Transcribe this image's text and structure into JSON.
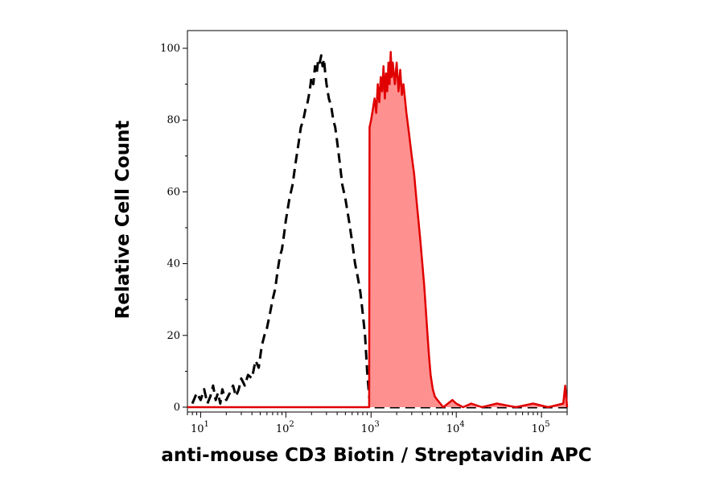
{
  "chart_data": {
    "type": "area",
    "title": "",
    "xlabel": "anti-mouse CD3 Biotin / Streptavidin APC",
    "ylabel": "Relative Cell Count",
    "x_scale": "log",
    "xlim": [
      7,
      200000
    ],
    "ylim": [
      0,
      105
    ],
    "grid": false,
    "x_ticks": [
      {
        "value": 10,
        "base": "10",
        "exp": "1"
      },
      {
        "value": 100,
        "base": "10",
        "exp": "2"
      },
      {
        "value": 1000,
        "base": "10",
        "exp": "3"
      },
      {
        "value": 10000,
        "base": "10",
        "exp": "4"
      },
      {
        "value": 100000,
        "base": "10",
        "exp": "5"
      }
    ],
    "y_ticks": [
      {
        "value": 0,
        "label": "0"
      },
      {
        "value": 20,
        "label": "20"
      },
      {
        "value": 40,
        "label": "40"
      },
      {
        "value": 60,
        "label": "60"
      },
      {
        "value": 80,
        "label": "80"
      },
      {
        "value": 100,
        "label": "100"
      }
    ],
    "series": [
      {
        "style": "dashed",
        "fill": "none",
        "color": "#000000",
        "points": [
          [
            8,
            1
          ],
          [
            9,
            4
          ],
          [
            10,
            2
          ],
          [
            11,
            5
          ],
          [
            12,
            1
          ],
          [
            13,
            3
          ],
          [
            14,
            6
          ],
          [
            15,
            2
          ],
          [
            16,
            4
          ],
          [
            17,
            1
          ],
          [
            18,
            5
          ],
          [
            19,
            3
          ],
          [
            20,
            2
          ],
          [
            22,
            4
          ],
          [
            24,
            6
          ],
          [
            26,
            3
          ],
          [
            28,
            5
          ],
          [
            30,
            8
          ],
          [
            33,
            6
          ],
          [
            36,
            9
          ],
          [
            40,
            8
          ],
          [
            44,
            13
          ],
          [
            48,
            11
          ],
          [
            52,
            17
          ],
          [
            56,
            20
          ],
          [
            60,
            22
          ],
          [
            65,
            26
          ],
          [
            70,
            30
          ],
          [
            75,
            33
          ],
          [
            80,
            38
          ],
          [
            85,
            42
          ],
          [
            90,
            44
          ],
          [
            95,
            48
          ],
          [
            100,
            52
          ],
          [
            110,
            58
          ],
          [
            120,
            62
          ],
          [
            130,
            68
          ],
          [
            140,
            73
          ],
          [
            150,
            78
          ],
          [
            160,
            80
          ],
          [
            170,
            83
          ],
          [
            180,
            85
          ],
          [
            190,
            88
          ],
          [
            200,
            92
          ],
          [
            210,
            90
          ],
          [
            220,
            95
          ],
          [
            230,
            93
          ],
          [
            240,
            97
          ],
          [
            250,
            96
          ],
          [
            260,
            98
          ],
          [
            270,
            95
          ],
          [
            280,
            97
          ],
          [
            290,
            93
          ],
          [
            300,
            90
          ],
          [
            320,
            86
          ],
          [
            340,
            84
          ],
          [
            360,
            80
          ],
          [
            380,
            78
          ],
          [
            400,
            74
          ],
          [
            430,
            68
          ],
          [
            460,
            62
          ],
          [
            500,
            58
          ],
          [
            550,
            52
          ],
          [
            600,
            46
          ],
          [
            650,
            40
          ],
          [
            700,
            36
          ],
          [
            750,
            32
          ],
          [
            800,
            26
          ],
          [
            850,
            20
          ],
          [
            900,
            10
          ],
          [
            950,
            3
          ],
          [
            1000,
            0
          ],
          [
            2000,
            0
          ],
          [
            10000,
            0
          ],
          [
            200000,
            0
          ]
        ]
      },
      {
        "style": "solid",
        "fill": "#ff9090",
        "color": "#e00000",
        "points": [
          [
            7,
            0
          ],
          [
            950,
            0
          ],
          [
            960,
            78
          ],
          [
            1000,
            80
          ],
          [
            1050,
            83
          ],
          [
            1100,
            86
          ],
          [
            1150,
            82
          ],
          [
            1200,
            90
          ],
          [
            1250,
            85
          ],
          [
            1300,
            92
          ],
          [
            1350,
            88
          ],
          [
            1400,
            95
          ],
          [
            1450,
            86
          ],
          [
            1500,
            93
          ],
          [
            1550,
            88
          ],
          [
            1600,
            96
          ],
          [
            1650,
            90
          ],
          [
            1700,
            99
          ],
          [
            1750,
            92
          ],
          [
            1800,
            96
          ],
          [
            1900,
            90
          ],
          [
            2000,
            96
          ],
          [
            2100,
            88
          ],
          [
            2200,
            94
          ],
          [
            2300,
            87
          ],
          [
            2400,
            90
          ],
          [
            2500,
            86
          ],
          [
            2600,
            82
          ],
          [
            2800,
            76
          ],
          [
            3000,
            70
          ],
          [
            3200,
            65
          ],
          [
            3400,
            58
          ],
          [
            3600,
            52
          ],
          [
            3800,
            46
          ],
          [
            4000,
            40
          ],
          [
            4200,
            34
          ],
          [
            4400,
            27
          ],
          [
            4600,
            20
          ],
          [
            4800,
            14
          ],
          [
            5000,
            9
          ],
          [
            5300,
            5
          ],
          [
            5600,
            3
          ],
          [
            6000,
            2
          ],
          [
            6500,
            1
          ],
          [
            7000,
            0
          ],
          [
            8000,
            1
          ],
          [
            9000,
            2
          ],
          [
            10000,
            1
          ],
          [
            12000,
            0
          ],
          [
            15000,
            1
          ],
          [
            20000,
            0
          ],
          [
            30000,
            1
          ],
          [
            50000,
            0
          ],
          [
            80000,
            1
          ],
          [
            120000,
            0
          ],
          [
            180000,
            1
          ],
          [
            190000,
            6
          ],
          [
            195000,
            3
          ],
          [
            200000,
            0
          ]
        ]
      }
    ]
  }
}
